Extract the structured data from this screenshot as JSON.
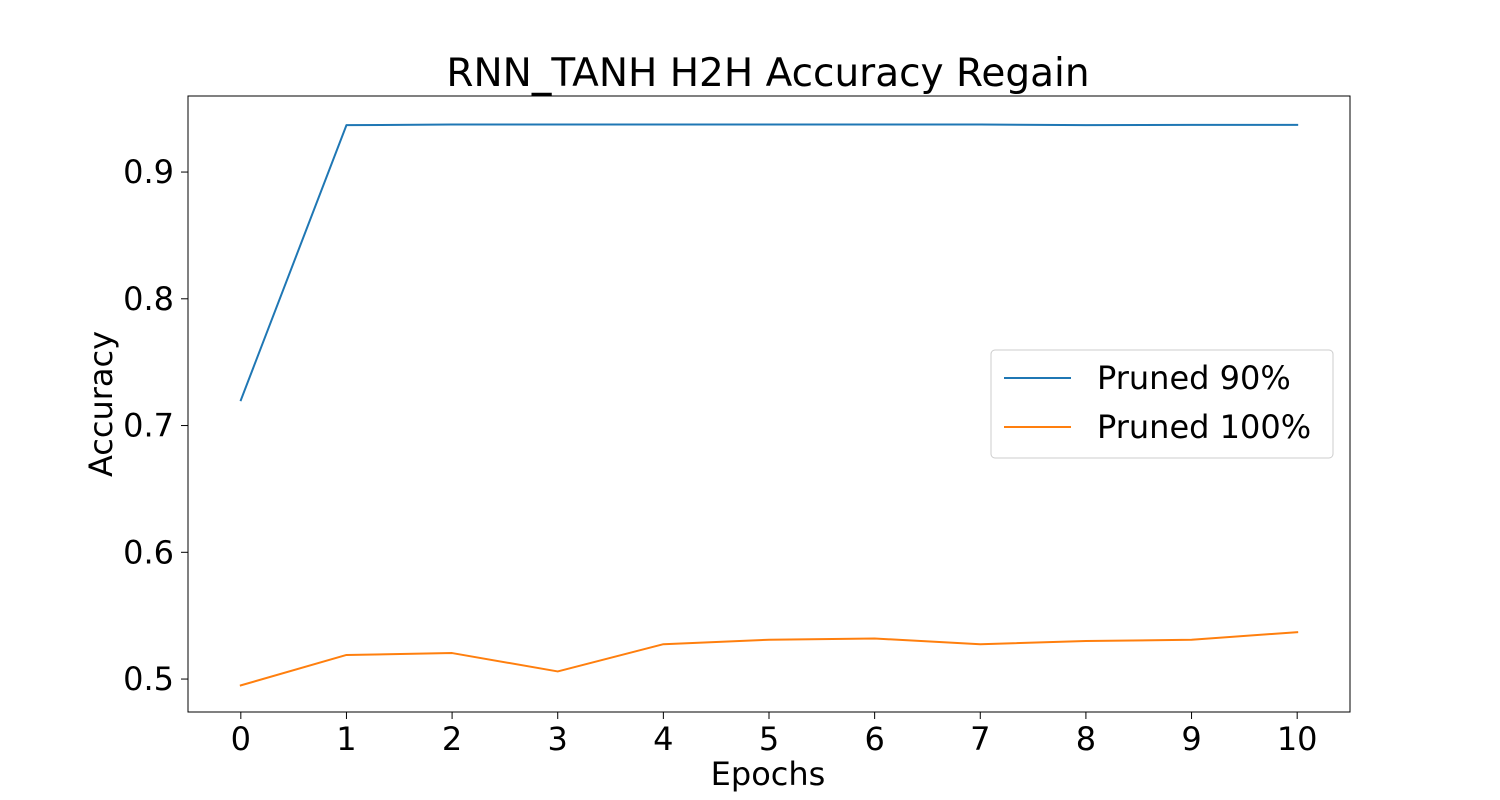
{
  "chart_data": {
    "type": "line",
    "title": "RNN_TANH H2H Accuracy Regain",
    "xlabel": "Epochs",
    "ylabel": "Accuracy",
    "x": [
      0,
      1,
      2,
      3,
      4,
      5,
      6,
      7,
      8,
      9,
      10
    ],
    "xticks": [
      "0",
      "1",
      "2",
      "3",
      "4",
      "5",
      "6",
      "7",
      "8",
      "9",
      "10"
    ],
    "yticks": [
      "0.5",
      "0.6",
      "0.7",
      "0.8",
      "0.9"
    ],
    "ytick_values": [
      0.5,
      0.6,
      0.7,
      0.8,
      0.9
    ],
    "xlim": [
      -0.5,
      10.5
    ],
    "ylim": [
      0.474,
      0.96
    ],
    "grid": false,
    "legend_position": "center-right",
    "series": [
      {
        "name": "Pruned 90%",
        "color": "#1f77b4",
        "values": [
          0.72,
          0.937,
          0.9375,
          0.9375,
          0.9375,
          0.9375,
          0.9375,
          0.9375,
          0.937,
          0.9372,
          0.9372
        ]
      },
      {
        "name": "Pruned 100%",
        "color": "#ff7f0e",
        "values": [
          0.495,
          0.519,
          0.5205,
          0.506,
          0.5275,
          0.531,
          0.532,
          0.5275,
          0.53,
          0.531,
          0.537
        ]
      }
    ]
  }
}
